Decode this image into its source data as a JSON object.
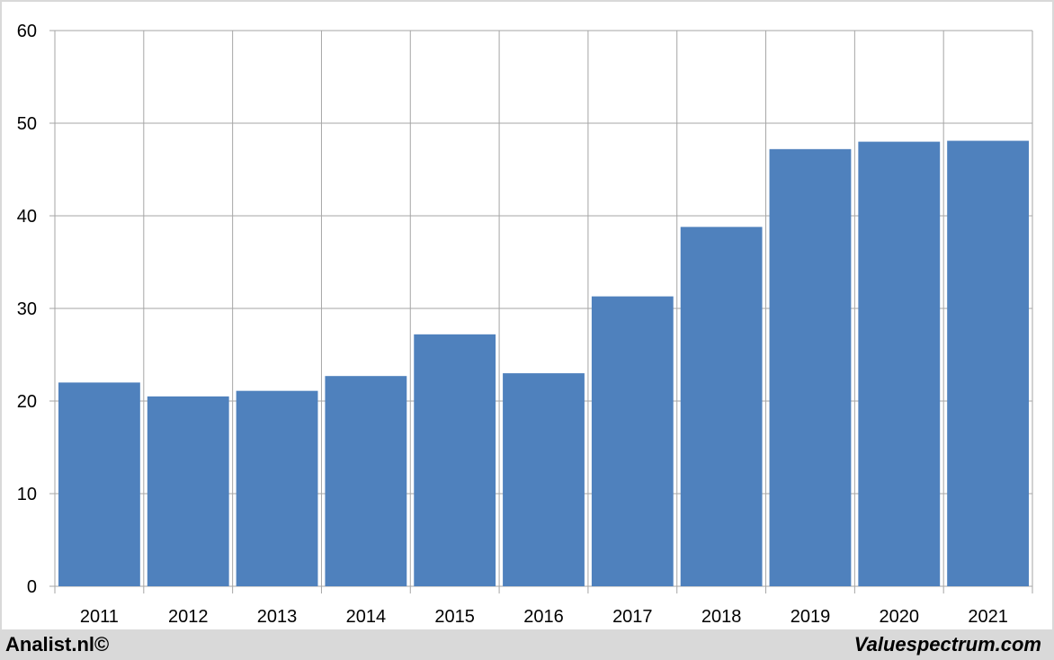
{
  "footer": {
    "left_text": "Analist.nl©",
    "right_text": "Valuespectrum.com"
  },
  "colors": {
    "bar": "#4f81bd",
    "grid": "#a6a6a6",
    "plot_background": "#ffffff",
    "frame_background": "#d9d9d9"
  },
  "chart_data": {
    "type": "bar",
    "title": "",
    "xlabel": "",
    "ylabel": "",
    "categories": [
      "2011",
      "2012",
      "2013",
      "2014",
      "2015",
      "2016",
      "2017",
      "2018",
      "2019",
      "2020",
      "2021"
    ],
    "values": [
      22.0,
      20.5,
      21.1,
      22.7,
      27.2,
      23.0,
      31.3,
      38.8,
      47.2,
      48.0,
      48.1
    ],
    "ylim": [
      0,
      60
    ],
    "yticks": [
      0,
      10,
      20,
      30,
      40,
      50,
      60
    ],
    "grid": true,
    "legend": "none"
  }
}
